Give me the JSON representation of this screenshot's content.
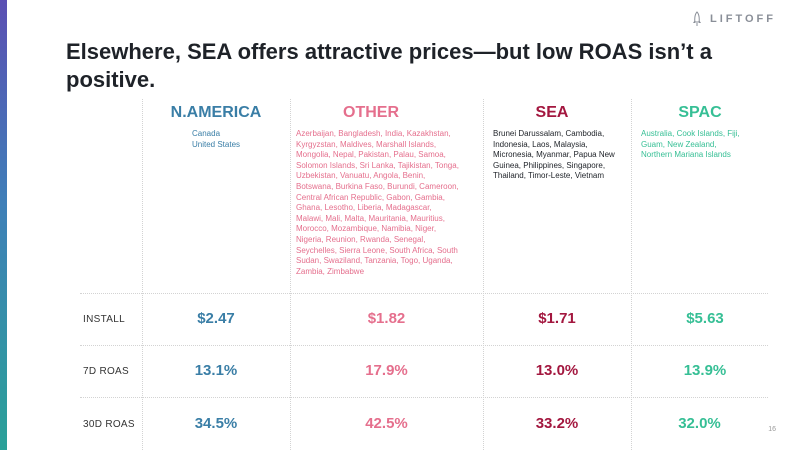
{
  "brand": {
    "logo_text": "LIFTOFF",
    "colors": {
      "north_america": "#3a7ea6",
      "other": "#e56f8d",
      "sea": "#a3173f",
      "spac": "#36bf95",
      "accent": "#4a6fb5"
    }
  },
  "slide": {
    "title": "Elsewhere, SEA offers attractive prices—but low ROAS isn’t a positive.",
    "page_number": "16"
  },
  "rows": {
    "install": "INSTALL",
    "roas7": "7D ROAS",
    "roas30": "30D ROAS"
  },
  "regions": {
    "north_america": {
      "name": "N.AMERICA",
      "countries": "Canada\nUnited States",
      "install": "$2.47",
      "roas7": "13.1%",
      "roas30": "34.5%"
    },
    "other": {
      "name": "OTHER",
      "countries": "Azerbaijan, Bangladesh, India, Kazakhstan, Kyrgyzstan, Maldives, Marshall Islands, Mongolia, Nepal, Pakistan, Palau, Samoa, Solomon Islands, Sri Lanka, Tajikistan, Tonga, Uzbekistan, Vanuatu, Angola, Benin, Botswana, Burkina Faso, Burundi, Cameroon, Central African Republic, Gabon, Gambia, Ghana, Lesotho, Liberia, Madagascar, Malawi, Mali, Malta, Mauritania, Mauritius, Morocco, Mozambique, Namibia, Niger, Nigeria, Reunion, Rwanda, Senegal, Seychelles, Sierra Leone, South Africa, South Sudan, Swaziland, Tanzania, Togo, Uganda, Zambia, Zimbabwe",
      "install": "$1.82",
      "roas7": "17.9%",
      "roas30": "42.5%"
    },
    "sea": {
      "name": "SEA",
      "countries": "Brunei Darussalam, Cambodia, Indonesia, Laos, Malaysia, Micronesia, Myanmar, Papua New Guinea, Philippines, Singapore, Thailand, Timor-Leste, Vietnam",
      "install": "$1.71",
      "roas7": "13.0%",
      "roas30": "33.2%"
    },
    "spac": {
      "name": "SPAC",
      "countries": "Australia, Cook Islands, Fiji, Guam, New Zealand, Northern Mariana Islands",
      "install": "$5.63",
      "roas7": "13.9%",
      "roas30": "32.0%"
    }
  }
}
